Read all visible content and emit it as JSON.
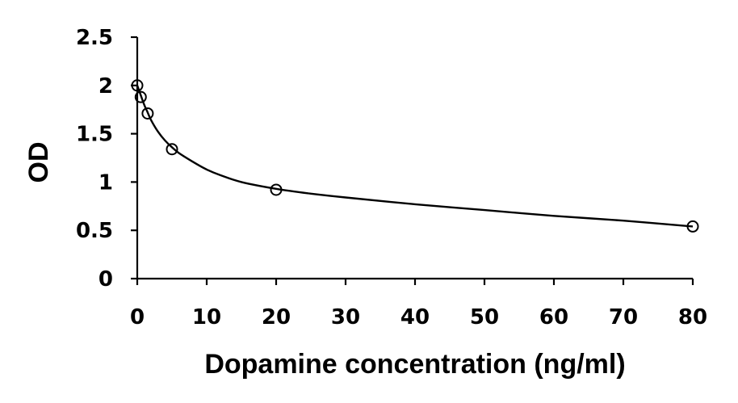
{
  "chart_data": {
    "type": "scatter",
    "title": "",
    "xlabel": "Dopamine concentration (ng/ml)",
    "ylabel": "OD",
    "xlim": [
      0,
      80
    ],
    "ylim": [
      0,
      2.5
    ],
    "x_ticks": [
      "0",
      "10",
      "20",
      "30",
      "40",
      "50",
      "60",
      "70",
      "80"
    ],
    "y_ticks": [
      "0",
      "0.5",
      "1",
      "1.5",
      "2",
      "2.5"
    ],
    "grid": false,
    "legend": "none",
    "marker": "open-circle",
    "colors": {
      "line": "#000000",
      "marker": "#000000",
      "background": "#ffffff"
    },
    "series": [
      {
        "x": [
          0,
          0.5,
          1.5,
          5,
          20,
          80
        ],
        "y": [
          2.0,
          1.88,
          1.71,
          1.34,
          0.92,
          0.54
        ]
      }
    ],
    "fit_curve": {
      "type": "smooth",
      "x": [
        0,
        0.5,
        1,
        1.5,
        2,
        3,
        4,
        5,
        6,
        8,
        10,
        12,
        15,
        20,
        25,
        30,
        40,
        50,
        60,
        70,
        80
      ],
      "y": [
        2.0,
        1.9,
        1.8,
        1.72,
        1.64,
        1.52,
        1.43,
        1.36,
        1.3,
        1.21,
        1.13,
        1.07,
        1.0,
        0.93,
        0.88,
        0.84,
        0.77,
        0.71,
        0.65,
        0.6,
        0.54
      ]
    }
  }
}
